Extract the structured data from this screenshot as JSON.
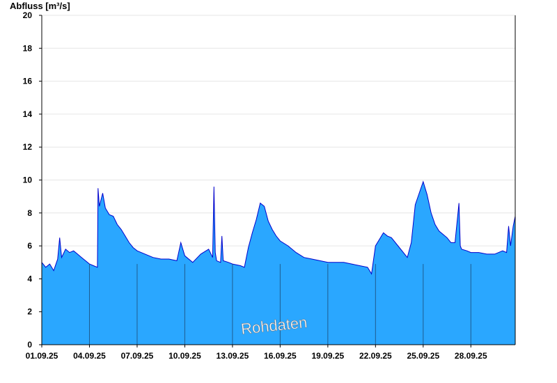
{
  "chart_data": {
    "type": "area",
    "ylabel": "Abfluss [m³/s]",
    "ylim": [
      0,
      20
    ],
    "yticks": [
      0,
      2,
      4,
      6,
      8,
      10,
      12,
      14,
      16,
      18,
      20
    ],
    "grid": true,
    "xlim": [
      "01.09.25",
      "30.09.25 19:00"
    ],
    "xticks": [
      "01.09.25",
      "04.09.25",
      "07.09.25",
      "10.09.25",
      "13.09.25",
      "16.09.25",
      "19.09.25",
      "22.09.25",
      "25.09.25",
      "28.09.25"
    ],
    "annotation": "Rohdaten",
    "colors": {
      "fill": "#2aa7ff",
      "line": "#0000cc"
    },
    "series": [
      {
        "x": [
          "01.09.25 00:00",
          "01.09.25 06:00",
          "01.09.25 12:00",
          "01.09.25 18:00",
          "02.09.25 00:00",
          "02.09.25 03:00",
          "02.09.25 06:00",
          "02.09.25 12:00",
          "02.09.25 18:00",
          "03.09.25 00:00",
          "03.09.25 06:00",
          "03.09.25 12:00",
          "03.09.25 18:00",
          "04.09.25 00:00",
          "04.09.25 06:00",
          "04.09.25 12:00",
          "04.09.25 13:00",
          "04.09.25 15:00",
          "04.09.25 20:00",
          "05.09.25 00:00",
          "05.09.25 06:00",
          "05.09.25 12:00",
          "05.09.25 18:00",
          "06.09.25 00:00",
          "06.09.25 06:00",
          "06.09.25 12:00",
          "06.09.25 18:00",
          "07.09.25 00:00",
          "07.09.25 12:00",
          "08.09.25 00:00",
          "08.09.25 12:00",
          "09.09.25 00:00",
          "09.09.25 12:00",
          "09.09.25 18:00",
          "10.09.25 00:00",
          "10.09.25 12:00",
          "11.09.25 00:00",
          "11.09.25 12:00",
          "11.09.25 18:00",
          "11.09.25 20:00",
          "11.09.25 22:00",
          "12.09.25 00:00",
          "12.09.25 06:00",
          "12.09.25 08:00",
          "12.09.25 10:00",
          "12.09.25 18:00",
          "13.09.25 00:00",
          "13.09.25 12:00",
          "13.09.25 18:00",
          "14.09.25 00:00",
          "14.09.25 06:00",
          "14.09.25 12:00",
          "14.09.25 18:00",
          "15.09.25 00:00",
          "15.09.25 06:00",
          "15.09.25 12:00",
          "15.09.25 18:00",
          "16.09.25 00:00",
          "16.09.25 12:00",
          "17.09.25 00:00",
          "17.09.25 12:00",
          "18.09.25 00:00",
          "18.09.25 12:00",
          "19.09.25 00:00",
          "19.09.25 12:00",
          "20.09.25 00:00",
          "20.09.25 12:00",
          "21.09.25 00:00",
          "21.09.25 12:00",
          "21.09.25 18:00",
          "22.09.25 00:00",
          "22.09.25 06:00",
          "22.09.25 12:00",
          "22.09.25 18:00",
          "23.09.25 00:00",
          "23.09.25 12:00",
          "24.09.25 00:00",
          "24.09.25 06:00",
          "24.09.25 12:00",
          "24.09.25 18:00",
          "25.09.25 00:00",
          "25.09.25 06:00",
          "25.09.25 12:00",
          "25.09.25 18:00",
          "26.09.25 00:00",
          "26.09.25 06:00",
          "26.09.25 12:00",
          "26.09.25 18:00",
          "27.09.25 00:00",
          "27.09.25 06:00",
          "27.09.25 08:00",
          "27.09.25 10:00",
          "27.09.25 18:00",
          "28.09.25 00:00",
          "28.09.25 12:00",
          "29.09.25 00:00",
          "29.09.25 12:00",
          "30.09.25 00:00",
          "30.09.25 06:00",
          "30.09.25 09:00",
          "30.09.25 12:00",
          "30.09.25 16:00",
          "30.09.25 19:00"
        ],
        "y": [
          5.0,
          4.7,
          4.9,
          4.5,
          5.2,
          6.5,
          5.3,
          5.8,
          5.6,
          5.7,
          5.5,
          5.3,
          5.1,
          4.9,
          4.8,
          4.7,
          9.5,
          8.4,
          9.2,
          8.3,
          7.9,
          7.8,
          7.3,
          7.0,
          6.6,
          6.2,
          5.9,
          5.7,
          5.5,
          5.3,
          5.2,
          5.2,
          5.1,
          6.2,
          5.4,
          5.0,
          5.5,
          5.8,
          5.3,
          9.6,
          5.6,
          5.1,
          5.0,
          6.6,
          5.1,
          5.0,
          4.9,
          4.8,
          4.7,
          5.9,
          6.8,
          7.6,
          8.6,
          8.4,
          7.5,
          7.0,
          6.6,
          6.3,
          6.0,
          5.6,
          5.3,
          5.2,
          5.1,
          5.0,
          5.0,
          5.0,
          4.9,
          4.8,
          4.7,
          4.3,
          6.0,
          6.4,
          6.8,
          6.6,
          6.5,
          5.9,
          5.3,
          6.2,
          8.5,
          9.2,
          9.9,
          9.1,
          8.0,
          7.3,
          6.9,
          6.7,
          6.5,
          6.2,
          6.2,
          8.6,
          6.0,
          5.8,
          5.7,
          5.6,
          5.6,
          5.5,
          5.5,
          5.7,
          5.6,
          7.2,
          6.0,
          7.2,
          7.8
        ]
      }
    ]
  }
}
